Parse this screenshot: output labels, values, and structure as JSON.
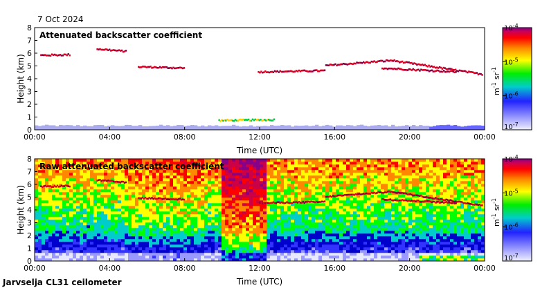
{
  "header": {
    "date": "7 Oct 2024"
  },
  "footer": {
    "station": "Jarvselja CL31 ceilometer"
  },
  "colormap": [
    "#e8e8ff",
    "#9999ff",
    "#3333ff",
    "#0000cc",
    "#00cccc",
    "#00ff00",
    "#ffff00",
    "#ff8800",
    "#ff0000",
    "#cc0044",
    "#880088"
  ],
  "chart_data": [
    {
      "type": "heatmap",
      "title": "Attenuated backscatter coefficient",
      "xlabel": "Time (UTC)",
      "ylabel": "Height (km)",
      "x_ticks": [
        "00:00",
        "04:00",
        "08:00",
        "12:00",
        "16:00",
        "20:00",
        "00:00"
      ],
      "xlim_hours": [
        0,
        24
      ],
      "y_ticks": [
        "0",
        "1",
        "2",
        "3",
        "4",
        "5",
        "6",
        "7",
        "8"
      ],
      "ylim_km": [
        0,
        8
      ],
      "colorbar": {
        "label_base": "m",
        "label_exp1": "-1",
        "label_unit": "sr",
        "label_exp2": "-1",
        "ticks": [
          "10",
          "10",
          "10",
          "10"
        ],
        "tick_exps": [
          "-4",
          "-5",
          "-6",
          "-7"
        ],
        "range": [
          "1e-7",
          "1e-4"
        ],
        "scale": "log"
      },
      "features": [
        {
          "name": "cloud-layer-early",
          "t_start": 0.3,
          "t_end": 1.9,
          "h_start": 5.9,
          "h_end": 5.95
        },
        {
          "name": "cloud-layer-morning",
          "t_start": 3.3,
          "t_end": 4.9,
          "h_start": 6.4,
          "h_end": 6.2
        },
        {
          "name": "cloud-layer-descending",
          "t_start": 5.5,
          "t_end": 8.0,
          "h_start": 5.0,
          "h_end": 4.9
        },
        {
          "name": "low-cloud-midday",
          "t_start": 9.8,
          "t_end": 12.8,
          "h_start": 0.8,
          "h_end": 0.85
        },
        {
          "name": "cloud-layer-afternoon",
          "t_start": 11.9,
          "t_end": 15.5,
          "h_start": 4.6,
          "h_end": 4.7
        },
        {
          "name": "cloud-layer-evening",
          "t_start": 15.5,
          "t_end": 19.0,
          "h_start": 5.1,
          "h_end": 5.5
        },
        {
          "name": "cloud-layer-night",
          "t_start": 19.0,
          "t_end": 23.9,
          "h_start": 5.5,
          "h_end": 4.4
        },
        {
          "name": "cloud-layer-lower-night",
          "t_start": 18.5,
          "t_end": 22.5,
          "h_start": 4.9,
          "h_end": 4.6
        }
      ]
    },
    {
      "type": "heatmap",
      "title": "Raw attenuated backscatter coefficient",
      "xlabel": "Time (UTC)",
      "ylabel": "Height (km)",
      "x_ticks": [
        "00:00",
        "04:00",
        "08:00",
        "12:00",
        "16:00",
        "20:00",
        "00:00"
      ],
      "xlim_hours": [
        0,
        24
      ],
      "y_ticks": [
        "0",
        "1",
        "2",
        "3",
        "4",
        "5",
        "6",
        "7",
        "8"
      ],
      "ylim_km": [
        0,
        8
      ],
      "colorbar": {
        "label_base": "m",
        "label_exp1": "-1",
        "label_unit": "sr",
        "label_exp2": "-1",
        "ticks": [
          "10",
          "10",
          "10",
          "10"
        ],
        "tick_exps": [
          "-4",
          "-5",
          "-6",
          "-7"
        ],
        "range": [
          "1e-7",
          "1e-4"
        ],
        "scale": "log"
      },
      "features": [
        {
          "name": "noisy-background",
          "t_start": 0,
          "t_end": 24,
          "h_start": 0,
          "h_end": 8
        },
        {
          "name": "high-noise-band",
          "t_start": 10.0,
          "t_end": 12.2,
          "h_start": 0.5,
          "h_end": 8
        }
      ]
    }
  ]
}
